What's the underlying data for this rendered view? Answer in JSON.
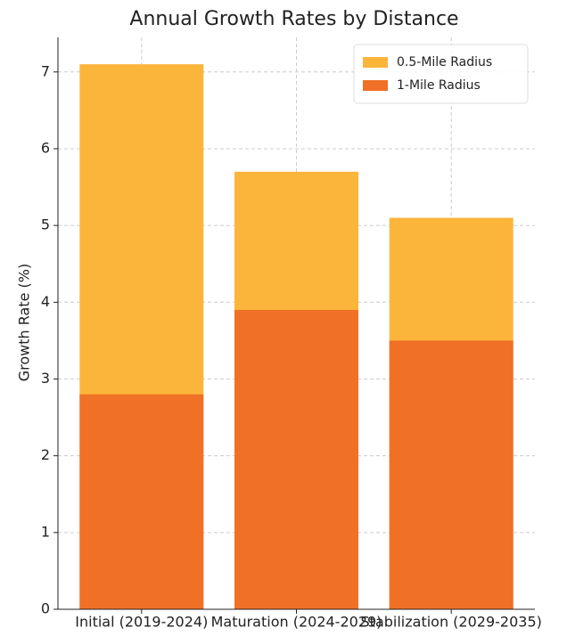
{
  "chart_data": {
    "type": "bar",
    "title": "Annual Growth Rates by Distance",
    "ylabel": "Growth Rate (%)",
    "categories": [
      "Initial (2019-2024)",
      "Maturation (2024-2029)",
      "Stabilization (2029-2035)"
    ],
    "series": [
      {
        "name": "0.5-Mile Radius",
        "color": "#fbb53b",
        "values": [
          7.1,
          5.7,
          5.1
        ]
      },
      {
        "name": "1-Mile Radius",
        "color": "#f07026",
        "values": [
          2.8,
          3.9,
          3.5
        ]
      }
    ],
    "ylim": [
      0,
      7.45
    ],
    "yticks": [
      0,
      1,
      2,
      3,
      4,
      5,
      6,
      7
    ],
    "grid": true,
    "legend": "upper right"
  }
}
